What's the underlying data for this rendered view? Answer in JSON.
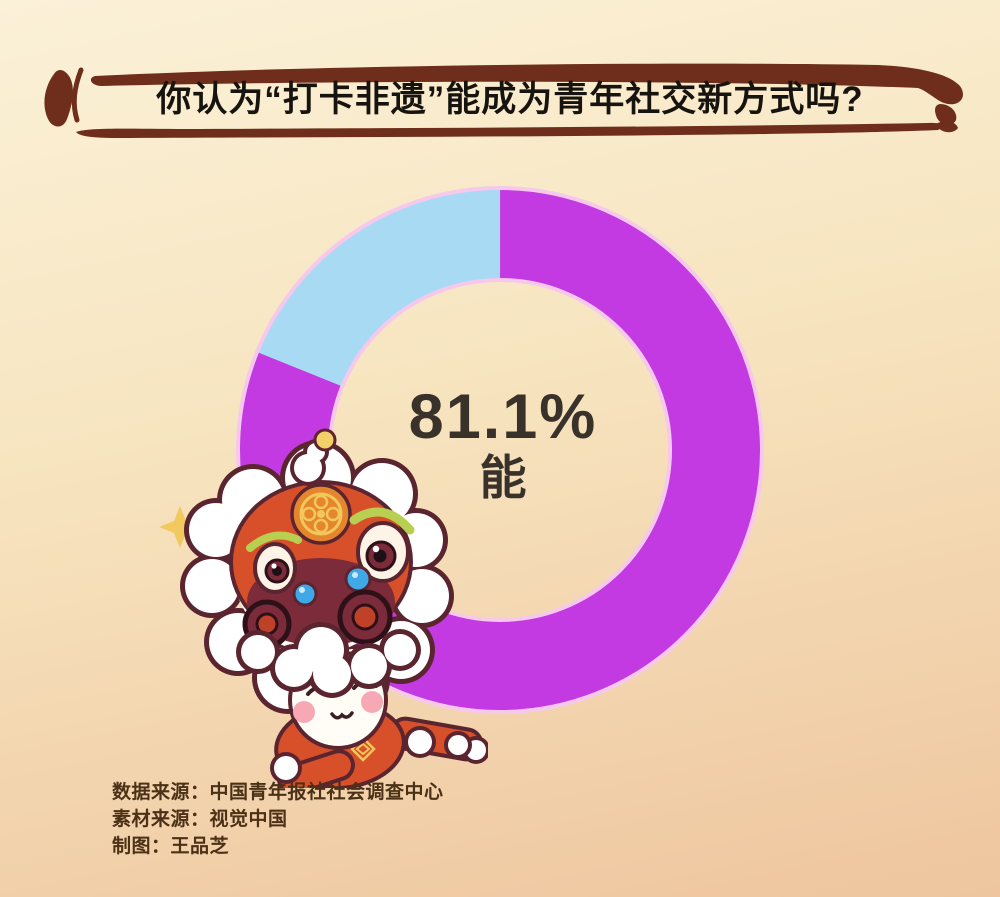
{
  "theme": {
    "background_top": "#fbf1d8",
    "background_mid": "#f7e5c0",
    "background_bottom": "#eec59e",
    "brush_color": "#6e2e1b",
    "title_color": "#17130f",
    "center_text_color": "#39322b",
    "footer_text_color": "#4b3116"
  },
  "header": {
    "title": "你认为“打卡非遗”能成为青年社交新方式吗?"
  },
  "chart_data": {
    "type": "pie",
    "donut": true,
    "start_angle": "top",
    "direction": "clockwise",
    "title": "你认为“打卡非遗”能成为青年社交新方式吗?",
    "slices": [
      {
        "label": "能",
        "value": 81.1,
        "color": "#c33ae2"
      },
      {
        "label": "",
        "value": 18.9,
        "color": "#a9daf3"
      }
    ],
    "ring_outline_color": "#f6c9ec",
    "center_label": {
      "percent": "81.1%",
      "text": "能"
    }
  },
  "mascot": {
    "name": "lion-dance-mascot",
    "decor": "four-point-sparkle"
  },
  "footer": {
    "lines": [
      "数据来源：中国青年报社社会调查中心",
      "素材来源：视觉中国",
      "制图：王品芝"
    ]
  }
}
